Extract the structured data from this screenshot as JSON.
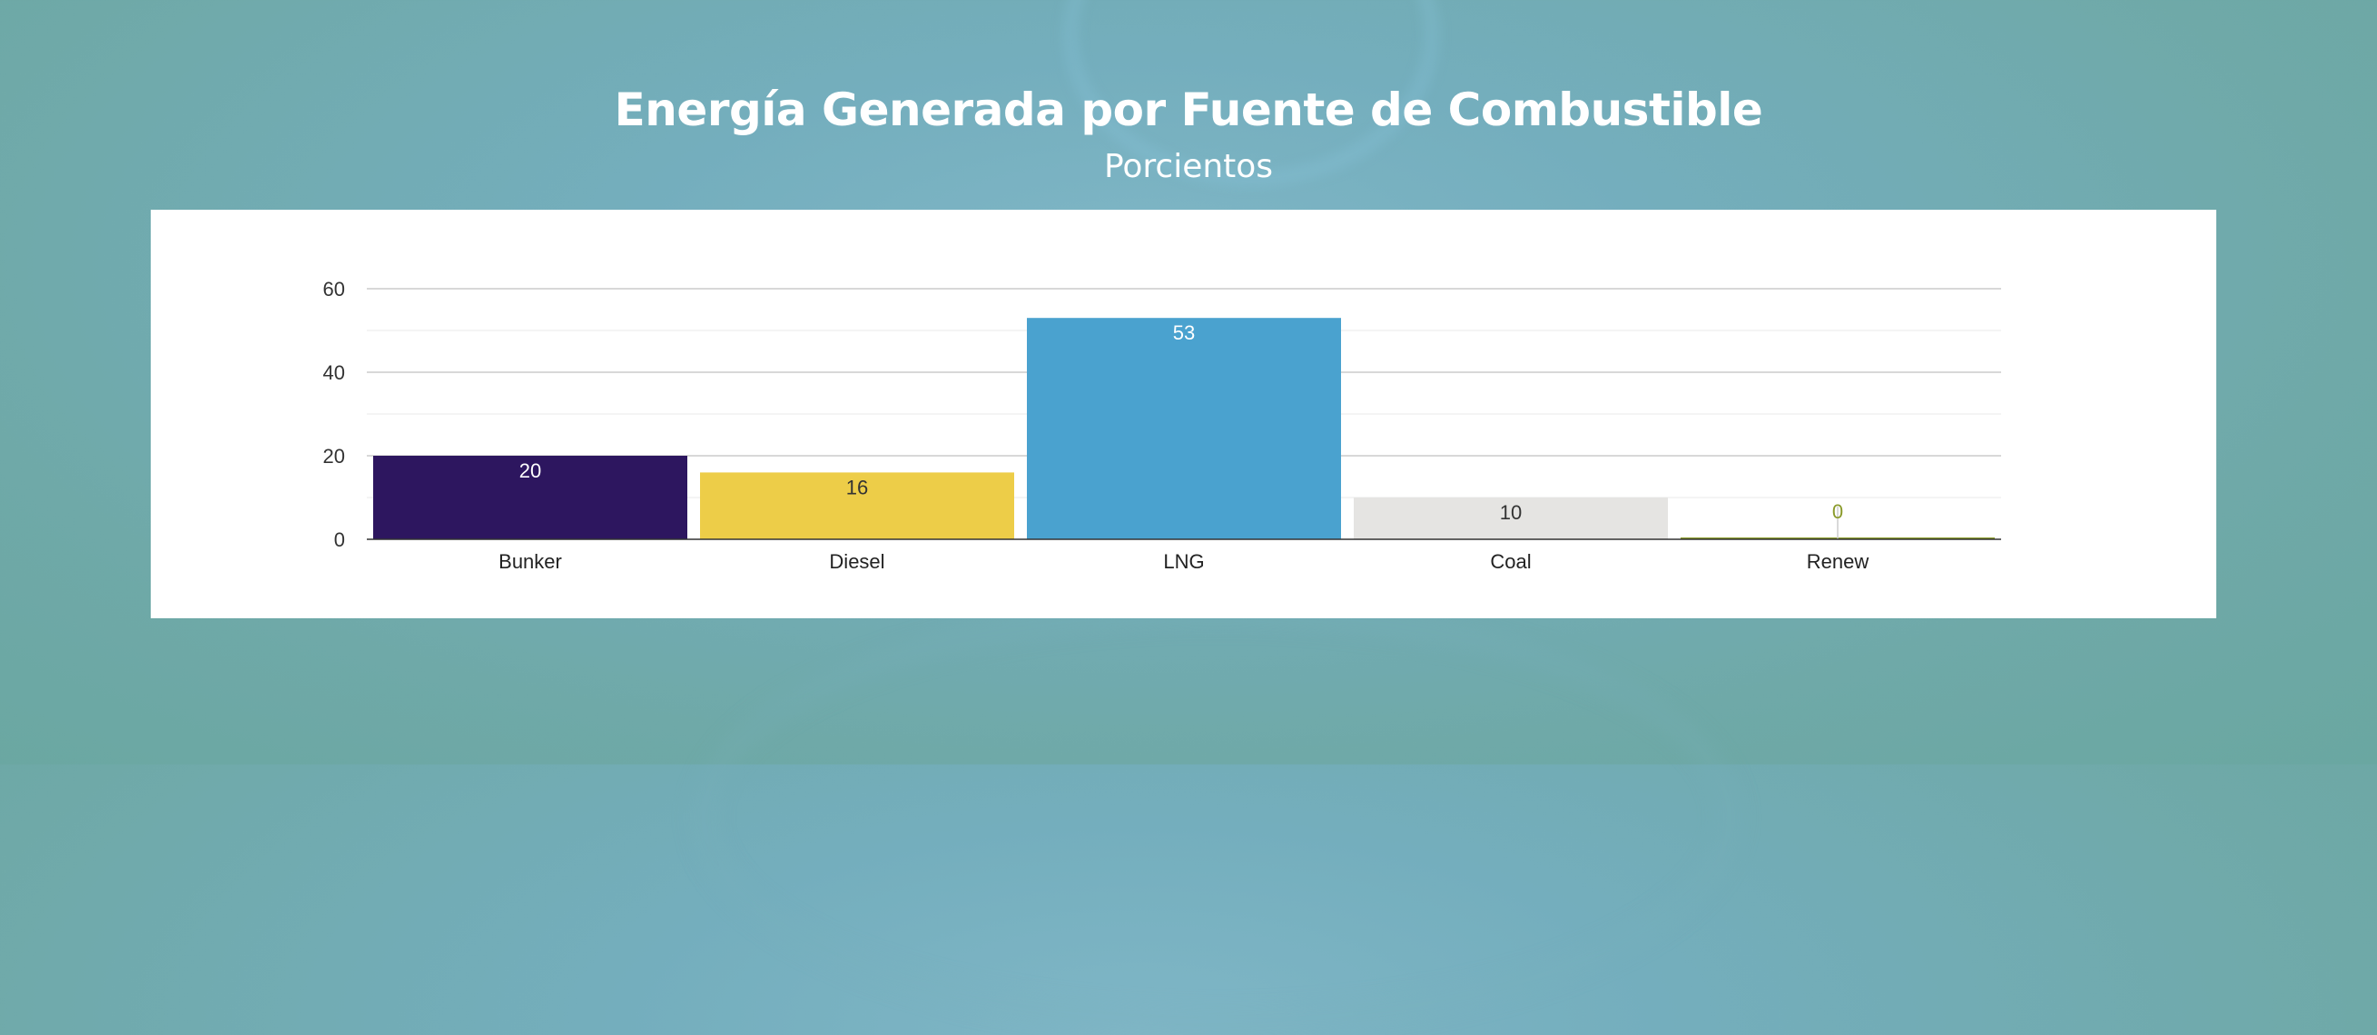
{
  "header": {
    "title": "Energía Generada por Fuente de Combustible",
    "subtitle": "Porcientos"
  },
  "chart_data": {
    "type": "bar",
    "title": "Energía Generada por Fuente de Combustible",
    "subtitle": "Porcientos",
    "xlabel": "",
    "ylabel": "",
    "categories": [
      "Bunker",
      "Diesel",
      "LNG",
      "Coal",
      "Renew"
    ],
    "values": [
      20,
      16,
      53,
      10,
      0
    ],
    "value_labels": [
      "20",
      "16",
      "53",
      "10",
      "0"
    ],
    "colors": [
      "#2d165f",
      "#edcd48",
      "#4aa2cf",
      "#e5e4e2",
      "#8a9a2a"
    ],
    "label_colors": [
      "#ffffff",
      "#333333",
      "#ffffff",
      "#333333",
      "#8a9a2a"
    ],
    "ylim": [
      0,
      60
    ],
    "yticks": [
      "0",
      "20",
      "40",
      "60"
    ],
    "grid": true,
    "legend": "none"
  }
}
